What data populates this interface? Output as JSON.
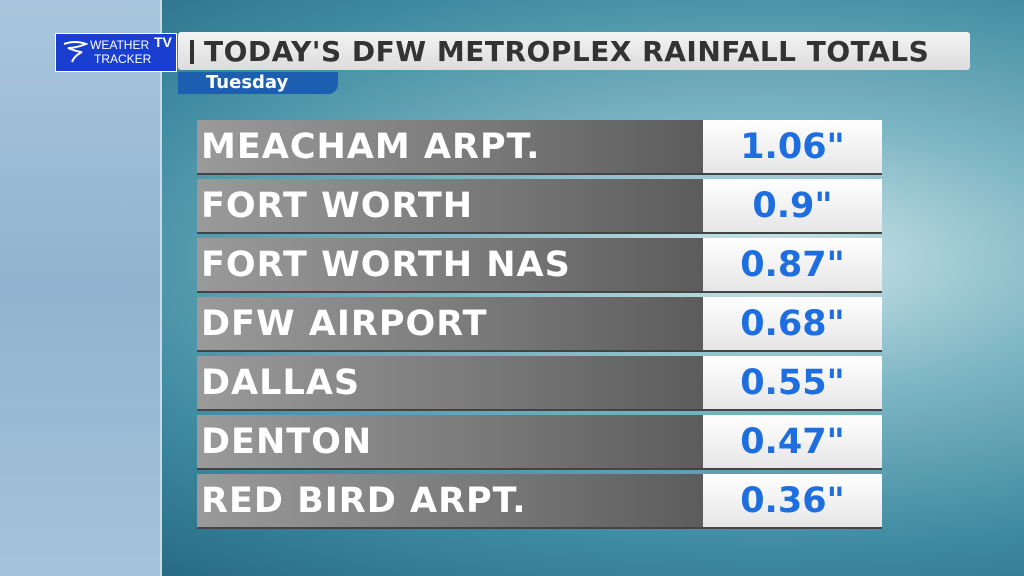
{
  "logo": {
    "line1": "WEATHER",
    "badge": "TV",
    "line2": "TRACKER"
  },
  "header": {
    "title": "TODAY'S DFW METROPLEX RAINFALL TOTALS",
    "subtitle": "Tuesday"
  },
  "table": {
    "rows": [
      [
        "MEACHAM ARPT.",
        "1.06\""
      ],
      [
        "FORT WORTH",
        "0.9\""
      ],
      [
        "FORT WORTH NAS",
        "0.87\""
      ],
      [
        "DFW AIRPORT",
        "0.68\""
      ],
      [
        "DALLAS",
        "0.55\""
      ],
      [
        "DENTON",
        "0.47\""
      ],
      [
        "RED BIRD ARPT.",
        "0.36\""
      ]
    ]
  }
}
